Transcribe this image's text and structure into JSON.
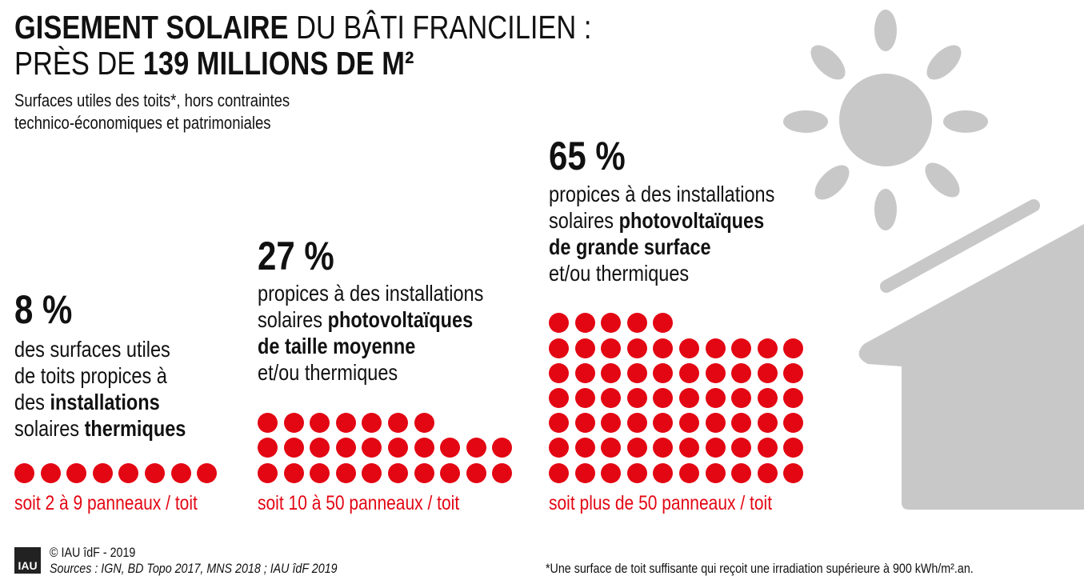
{
  "title": {
    "line1_bold": "GISEMENT SOLAIRE",
    "line1_rest": " DU BÂTI FRANCILIEN :",
    "line2_start": "PRÈS DE ",
    "line2_bold": "139 MILLIONS DE M²"
  },
  "subtitle": [
    "Surfaces utiles des toits*, hors contraintes",
    "technico-économiques et patrimoniales"
  ],
  "panels": [
    {
      "percent": "8 %",
      "dots": 8,
      "lines": [
        {
          "text": "des surfaces utiles"
        },
        {
          "text": "de toits propices à"
        },
        {
          "pre": "des ",
          "bold": "installations"
        },
        {
          "pre": "solaires ",
          "bold": "thermiques"
        }
      ],
      "footer": "soit 2 à 9 panneaux / toit"
    },
    {
      "percent": "27 %",
      "dots": 27,
      "lines": [
        {
          "text": "propices à des installations"
        },
        {
          "pre": "solaires ",
          "bold": "photovoltaïques"
        },
        {
          "bold": "de taille moyenne"
        },
        {
          "text": "et/ou thermiques"
        }
      ],
      "footer": "soit 10 à 50 panneaux / toit"
    },
    {
      "percent": "65 %",
      "dots": 65,
      "lines": [
        {
          "text": "propices à des installations"
        },
        {
          "pre": "solaires ",
          "bold": "photovoltaïques"
        },
        {
          "bold": "de grande surface"
        },
        {
          "text": "et/ou thermiques"
        }
      ],
      "footer": "soit plus de 50 panneaux / toit"
    }
  ],
  "footer": {
    "logo": "IAU",
    "copyright": "© IAU îdF - 2019",
    "sources": "Sources : IGN, BD Topo 2017, MNS 2018 ; IAU îdF 2019",
    "note": "*Une surface de toit suffisante qui reçoit une irradiation supérieure à 900 kWh/m².an."
  },
  "colors": {
    "accent": "#e30613",
    "illustration": "#c8c8c8",
    "text": "#111111"
  },
  "icons": [
    "sun-icon",
    "house-icon"
  ]
}
